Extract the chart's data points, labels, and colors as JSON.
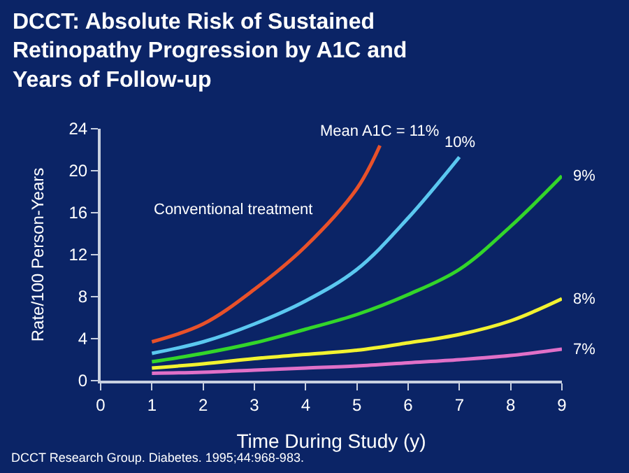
{
  "chart_data": {
    "type": "line",
    "title": "DCCT: Absolute Risk of Sustained Retinopathy Progression by A1C and Years of Follow-up",
    "xlabel": "Time During Study (y)",
    "ylabel": "Rate/100 Person-Years",
    "xlim": [
      0,
      9
    ],
    "xticks": [
      0,
      1,
      2,
      3,
      4,
      5,
      6,
      7,
      8,
      9
    ],
    "ylim": [
      0,
      24
    ],
    "yticks": [
      0,
      4,
      8,
      12,
      16,
      20,
      24
    ],
    "grid": false,
    "legend": false,
    "marker": "none",
    "line_style": "solid",
    "series": [
      {
        "name": "Mean A1C = 11%",
        "color": "#e8512a",
        "x": [
          1,
          2,
          3,
          4,
          5,
          5.45
        ],
        "values": [
          3.7,
          5.4,
          8.7,
          12.8,
          18.3,
          22.4
        ]
      },
      {
        "name": "10%",
        "color": "#5bc8f0",
        "x": [
          1,
          2,
          3,
          4,
          5,
          6,
          7
        ],
        "values": [
          2.6,
          3.7,
          5.4,
          7.6,
          10.6,
          15.5,
          21.3
        ]
      },
      {
        "name": "9%",
        "color": "#33d62a",
        "x": [
          1,
          2,
          3,
          4,
          5,
          6,
          7,
          8,
          9
        ],
        "values": [
          1.8,
          2.6,
          3.6,
          4.9,
          6.3,
          8.2,
          10.6,
          14.7,
          19.5
        ]
      },
      {
        "name": "8%",
        "color": "#f2f230",
        "x": [
          1,
          2,
          3,
          4,
          5,
          6,
          7,
          8,
          9
        ],
        "values": [
          1.2,
          1.6,
          2.1,
          2.5,
          2.9,
          3.6,
          4.4,
          5.7,
          7.8
        ]
      },
      {
        "name": "7%",
        "color": "#e070c8",
        "x": [
          1,
          2,
          3,
          4,
          5,
          6,
          7,
          8,
          9
        ],
        "values": [
          0.7,
          0.8,
          1.0,
          1.2,
          1.4,
          1.7,
          2.0,
          2.4,
          3.0
        ]
      }
    ],
    "annotations": [
      "Conventional treatment",
      "DCCT Research Group. Diabetes. 1995;44:968-983."
    ]
  }
}
